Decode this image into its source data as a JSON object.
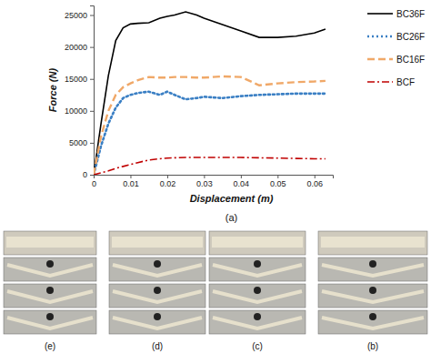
{
  "chart_data": {
    "type": "line",
    "x_label": "Displacement (m)",
    "y_label": "Force (N)",
    "annotations": [
      "(a)",
      "(e)",
      "(d)",
      "(c)",
      "(b)"
    ],
    "x": [
      0,
      0.002,
      0.004,
      0.006,
      0.008,
      0.01,
      0.012,
      0.015,
      0.018,
      0.02,
      0.022,
      0.025,
      0.028,
      0.03,
      0.035,
      0.04,
      0.045,
      0.05,
      0.055,
      0.06,
      0.063
    ],
    "xlim": [
      0,
      0.065
    ],
    "xticks": [
      0,
      0.01,
      0.02,
      0.03,
      0.04,
      0.05,
      0.06
    ],
    "ylim": [
      0,
      26500
    ],
    "yticks": [
      0,
      5000,
      10000,
      15000,
      20000,
      25000
    ],
    "legend": "top-right",
    "series": [
      {
        "name": "BC36F",
        "color": "#000000",
        "line_style": "solid",
        "values": [
          0,
          8000,
          15500,
          21000,
          23000,
          23600,
          23700,
          23800,
          24500,
          24800,
          25000,
          25500,
          25000,
          24500,
          23500,
          22500,
          21500,
          21500,
          21700,
          22200,
          22800
        ]
      },
      {
        "name": "BC26F",
        "color": "#3a7fc4",
        "line_style": "dotted",
        "values": [
          0,
          4500,
          8000,
          10500,
          12000,
          12500,
          12800,
          13000,
          12500,
          13000,
          12500,
          11800,
          12000,
          12200,
          12000,
          12300,
          12500,
          12600,
          12700,
          12700,
          12700
        ]
      },
      {
        "name": "BC16F",
        "color": "#f0a868",
        "line_style": "dashed",
        "values": [
          0,
          6000,
          10000,
          12500,
          13700,
          14300,
          14800,
          15300,
          15200,
          15200,
          15300,
          15300,
          15200,
          15200,
          15400,
          15300,
          14000,
          14300,
          14500,
          14600,
          14700
        ]
      },
      {
        "name": "BCF",
        "color": "#c00000",
        "line_style": "dashdot",
        "values": [
          0,
          300,
          600,
          1000,
          1300,
          1600,
          1900,
          2300,
          2500,
          2600,
          2650,
          2700,
          2700,
          2700,
          2700,
          2700,
          2650,
          2600,
          2550,
          2500,
          2500
        ]
      }
    ]
  }
}
